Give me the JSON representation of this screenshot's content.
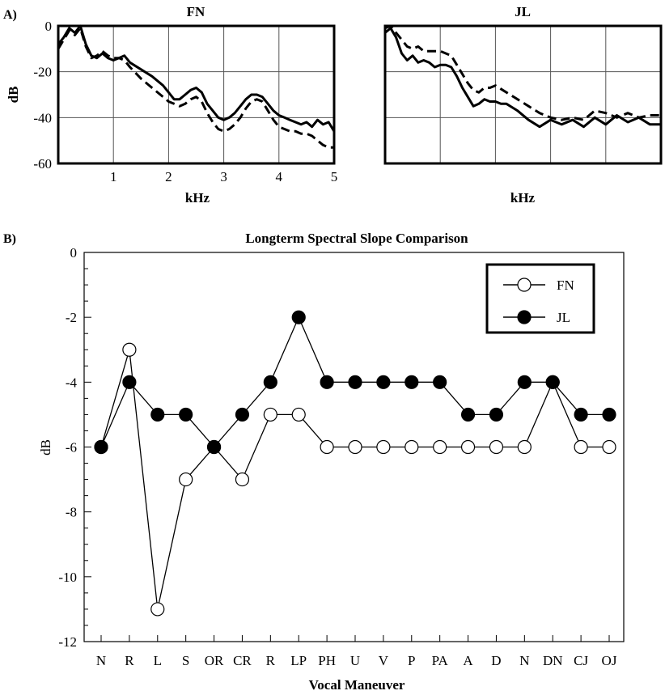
{
  "chart_data": [
    {
      "type": "line",
      "panel_label": "A)",
      "title": "FN",
      "xlabel": "kHz",
      "ylabel": "dB",
      "xlim": [
        0,
        5
      ],
      "ylim": [
        -60,
        0
      ],
      "x_ticks": [
        "1",
        "2",
        "3",
        "4",
        "5"
      ],
      "y_ticks": [
        "0",
        "-20",
        "-40",
        "-60"
      ],
      "grid": true,
      "series": [
        {
          "style": "solid",
          "x": [
            0,
            0.1,
            0.2,
            0.3,
            0.4,
            0.5,
            0.6,
            0.7,
            0.8,
            0.9,
            1.0,
            1.1,
            1.2,
            1.3,
            1.5,
            1.7,
            1.9,
            2.0,
            2.1,
            2.2,
            2.3,
            2.4,
            2.5,
            2.6,
            2.7,
            2.8,
            2.9,
            3.0,
            3.1,
            3.2,
            3.3,
            3.4,
            3.5,
            3.6,
            3.7,
            3.8,
            3.9,
            4.0,
            4.1,
            4.2,
            4.3,
            4.4,
            4.5,
            4.6,
            4.7,
            4.8,
            4.9,
            5.0
          ],
          "y": [
            -8,
            -5,
            -1,
            -3,
            0,
            -8,
            -13,
            -14,
            -12,
            -14,
            -15,
            -14,
            -13,
            -16,
            -19,
            -22,
            -26,
            -29,
            -32,
            -32,
            -30,
            -28,
            -27,
            -29,
            -34,
            -37,
            -40,
            -41,
            -40,
            -38,
            -35,
            -32,
            -30,
            -30,
            -31,
            -34,
            -37,
            -39,
            -40,
            -41,
            -42,
            -43,
            -42,
            -44,
            -41,
            -43,
            -42,
            -46
          ]
        },
        {
          "style": "dashed",
          "x": [
            0,
            0.1,
            0.2,
            0.3,
            0.4,
            0.5,
            0.6,
            0.7,
            0.8,
            0.9,
            1.0,
            1.1,
            1.2,
            1.3,
            1.5,
            1.7,
            1.9,
            2.0,
            2.1,
            2.2,
            2.3,
            2.4,
            2.5,
            2.6,
            2.7,
            2.8,
            2.9,
            3.0,
            3.1,
            3.2,
            3.3,
            3.4,
            3.5,
            3.6,
            3.7,
            3.8,
            3.9,
            4.0,
            4.1,
            4.2,
            4.3,
            4.4,
            4.5,
            4.6,
            4.7,
            4.8,
            4.9,
            5.0
          ],
          "y": [
            -10,
            -6,
            -2,
            -4,
            -1,
            -9,
            -14,
            -13,
            -11,
            -13,
            -14,
            -14,
            -15,
            -18,
            -23,
            -27,
            -31,
            -33,
            -34,
            -35,
            -34,
            -32,
            -31,
            -33,
            -38,
            -42,
            -45,
            -46,
            -45,
            -43,
            -40,
            -36,
            -33,
            -32,
            -33,
            -37,
            -41,
            -44,
            -45,
            -46,
            -46,
            -47,
            -47,
            -48,
            -50,
            -52,
            -53,
            -53
          ]
        }
      ]
    },
    {
      "type": "line",
      "title": "JL",
      "xlabel": "kHz",
      "xlim": [
        0,
        5
      ],
      "ylim": [
        -60,
        0
      ],
      "grid": true,
      "series": [
        {
          "style": "solid",
          "x": [
            0,
            0.1,
            0.2,
            0.3,
            0.4,
            0.5,
            0.6,
            0.7,
            0.8,
            0.9,
            1.0,
            1.1,
            1.2,
            1.3,
            1.4,
            1.5,
            1.6,
            1.7,
            1.8,
            1.9,
            2.0,
            2.1,
            2.2,
            2.4,
            2.6,
            2.8,
            3.0,
            3.2,
            3.4,
            3.6,
            3.8,
            4.0,
            4.2,
            4.4,
            4.6,
            4.8,
            5.0
          ],
          "y": [
            -3,
            -1,
            -5,
            -12,
            -15,
            -13,
            -16,
            -15,
            -16,
            -18,
            -17,
            -17,
            -18,
            -22,
            -27,
            -31,
            -35,
            -34,
            -32,
            -33,
            -33,
            -34,
            -34,
            -37,
            -41,
            -44,
            -41,
            -43,
            -41,
            -44,
            -40,
            -43,
            -39,
            -42,
            -40,
            -43,
            -43
          ]
        },
        {
          "style": "dashed",
          "x": [
            0,
            0.1,
            0.2,
            0.3,
            0.4,
            0.5,
            0.6,
            0.7,
            0.8,
            0.9,
            1.0,
            1.1,
            1.2,
            1.3,
            1.4,
            1.5,
            1.6,
            1.7,
            1.8,
            1.9,
            2.0,
            2.2,
            2.4,
            2.6,
            2.8,
            3.0,
            3.2,
            3.4,
            3.6,
            3.8,
            4.0,
            4.2,
            4.4,
            4.6,
            4.8,
            5.0
          ],
          "y": [
            -1,
            0,
            -3,
            -6,
            -9,
            -10,
            -9,
            -11,
            -11,
            -11,
            -11,
            -12,
            -13,
            -17,
            -21,
            -25,
            -28,
            -29,
            -27,
            -27,
            -26,
            -29,
            -32,
            -35,
            -38,
            -40,
            -41,
            -40,
            -41,
            -37,
            -38,
            -40,
            -38,
            -40,
            -39,
            -39
          ]
        }
      ]
    },
    {
      "type": "line",
      "panel_label": "B)",
      "title": "Longterm Spectral Slope Comparison",
      "xlabel": "Vocal Maneuver",
      "ylabel": "dB",
      "ylim": [
        -12,
        0
      ],
      "y_ticks": [
        "0",
        "-2",
        "-4",
        "-6",
        "-8",
        "-10",
        "-12"
      ],
      "categories": [
        "N",
        "R",
        "L",
        "S",
        "OR",
        "CR",
        "R",
        "LP",
        "PH",
        "U",
        "V",
        "P",
        "PA",
        "A",
        "D",
        "N",
        "DN",
        "CJ",
        "OJ"
      ],
      "legend": "top-right",
      "series": [
        {
          "name": "FN",
          "marker": "open-circle",
          "values": [
            -6,
            -3,
            -11,
            -7,
            -6,
            -7,
            -5,
            -5,
            -6,
            -6,
            -6,
            -6,
            -6,
            -6,
            -6,
            -6,
            -4,
            -6,
            -6
          ]
        },
        {
          "name": "JL",
          "marker": "filled-circle",
          "values": [
            -6,
            -4,
            -5,
            -5,
            -6,
            -5,
            -4,
            -2,
            -4,
            -4,
            -4,
            -4,
            -4,
            -5,
            -5,
            -4,
            -4,
            -5,
            -5
          ]
        }
      ]
    }
  ]
}
